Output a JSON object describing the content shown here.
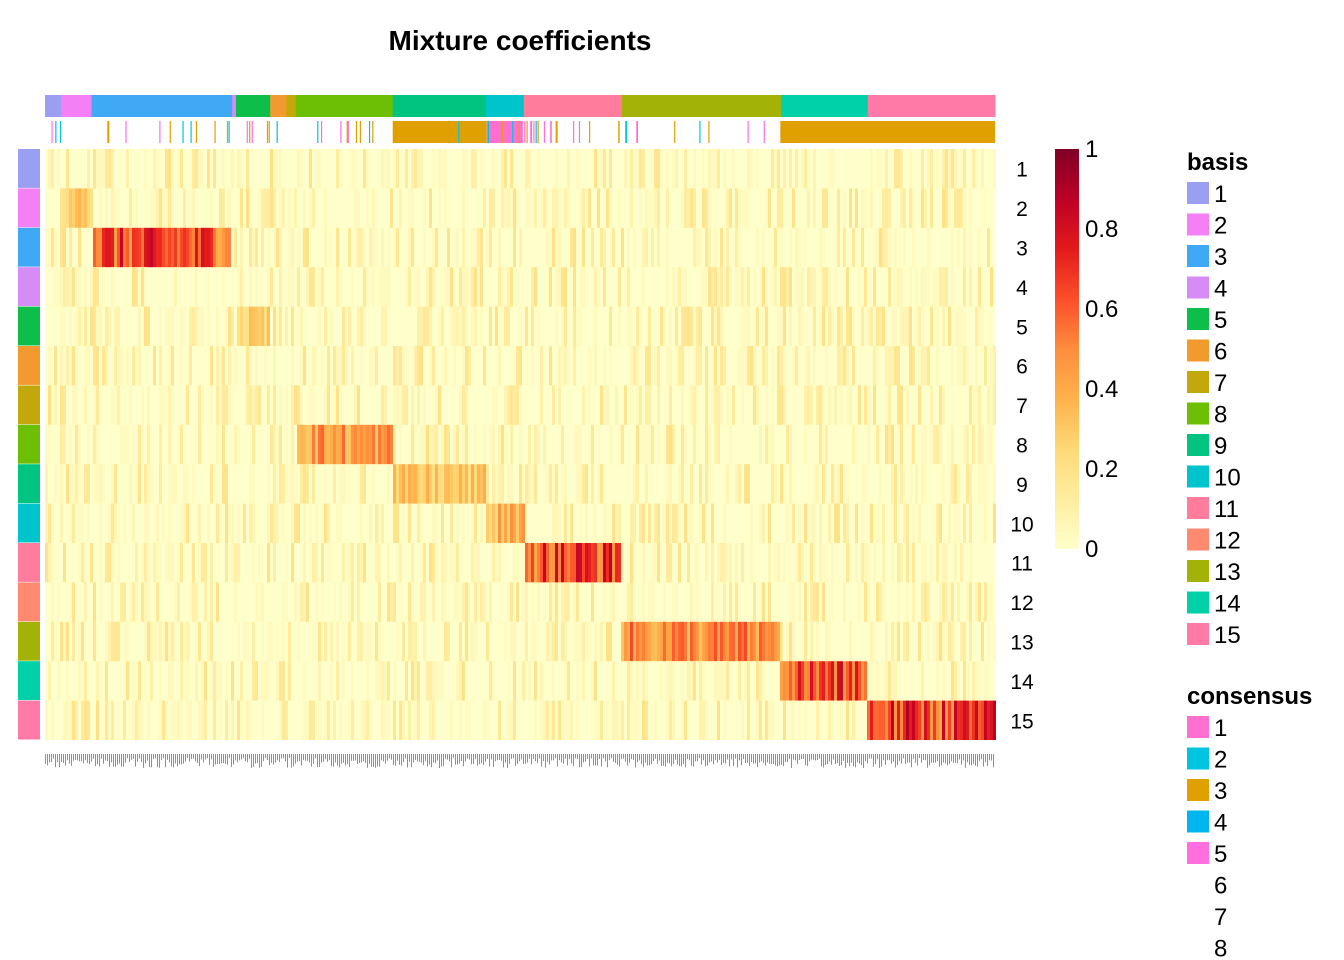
{
  "chart_data": {
    "type": "heatmap",
    "title": "Mixture coefficients",
    "row_labels": [
      "1",
      "2",
      "3",
      "4",
      "5",
      "6",
      "7",
      "8",
      "9",
      "10",
      "11",
      "12",
      "13",
      "14",
      "15"
    ],
    "row_colors": [
      "#9b9ff2",
      "#f57ff5",
      "#3fa9f5",
      "#d58cf5",
      "#0dbf4a",
      "#f39a2e",
      "#c2a80a",
      "#6cbf05",
      "#00c47f",
      "#00c4cc",
      "#ff7c9d",
      "#ff8a70",
      "#a3b207",
      "#00d1a8",
      "#ff7aa6"
    ],
    "column_groups": [
      {
        "basis": "1",
        "fraction": 0.017
      },
      {
        "basis": "2",
        "fraction": 0.032
      },
      {
        "basis": "3",
        "fraction": 0.148
      },
      {
        "basis": "4",
        "fraction": 0.004
      },
      {
        "basis": "5",
        "fraction": 0.036
      },
      {
        "basis": "6",
        "fraction": 0.017
      },
      {
        "basis": "7",
        "fraction": 0.01
      },
      {
        "basis": "8",
        "fraction": 0.102
      },
      {
        "basis": "9",
        "fraction": 0.098
      },
      {
        "basis": "10",
        "fraction": 0.04
      },
      {
        "basis": "11",
        "fraction": 0.102
      },
      {
        "basis": "12",
        "fraction": 0.001
      },
      {
        "basis": "13",
        "fraction": 0.168
      },
      {
        "basis": "14",
        "fraction": 0.091
      },
      {
        "basis": "15",
        "fraction": 0.134
      }
    ],
    "dominant_blocks": [
      {
        "row": "3",
        "column_group": "3",
        "peak": 0.85
      },
      {
        "row": "11",
        "column_group": "11",
        "peak": 0.9
      },
      {
        "row": "8",
        "column_group": "8",
        "peak": 0.6
      },
      {
        "row": "13",
        "column_group": "13",
        "peak": 0.65
      },
      {
        "row": "14",
        "column_group": "14",
        "peak": 0.85
      },
      {
        "row": "15",
        "column_group": "15",
        "peak": 0.9
      },
      {
        "row": "9",
        "column_group": "9",
        "peak": 0.4
      },
      {
        "row": "10",
        "column_group": "10",
        "peak": 0.5
      },
      {
        "row": "5",
        "column_group": "5",
        "peak": 0.35
      },
      {
        "row": "2",
        "column_group": "2",
        "peak": 0.4
      }
    ],
    "colorbar": {
      "min": 0,
      "max": 1,
      "ticks": [
        "1",
        "0.8",
        "0.6",
        "0.4",
        "0.2",
        "0"
      ],
      "colors": [
        "#ffffcc",
        "#ffeda0",
        "#fed976",
        "#feb24c",
        "#fd8d3c",
        "#fc4e2a",
        "#e31a1c",
        "#bd0026",
        "#800026"
      ]
    },
    "legend_basis": {
      "title": "basis",
      "items": [
        {
          "label": "1",
          "color": "#9b9ff2"
        },
        {
          "label": "2",
          "color": "#f57ff5"
        },
        {
          "label": "3",
          "color": "#3fa9f5"
        },
        {
          "label": "4",
          "color": "#d58cf5"
        },
        {
          "label": "5",
          "color": "#0dbf4a"
        },
        {
          "label": "6",
          "color": "#f39a2e"
        },
        {
          "label": "7",
          "color": "#c2a80a"
        },
        {
          "label": "8",
          "color": "#6cbf05"
        },
        {
          "label": "9",
          "color": "#00c47f"
        },
        {
          "label": "10",
          "color": "#00c4cc"
        },
        {
          "label": "11",
          "color": "#ff7c9d"
        },
        {
          "label": "12",
          "color": "#ff8a70"
        },
        {
          "label": "13",
          "color": "#a3b207"
        },
        {
          "label": "14",
          "color": "#00d1a8"
        },
        {
          "label": "15",
          "color": "#ff7aa6"
        }
      ]
    },
    "legend_consensus": {
      "title": "consensus",
      "items": [
        {
          "label": "1",
          "color": "#ff6fcf"
        },
        {
          "label": "2",
          "color": "#00c5e0"
        },
        {
          "label": "3",
          "color": "#e0a000"
        },
        {
          "label": "4",
          "color": "#00b6f0"
        },
        {
          "label": "5",
          "color": "#ff6fe0"
        },
        {
          "label": "6",
          "color": ""
        },
        {
          "label": "7",
          "color": ""
        },
        {
          "label": "8",
          "color": ""
        }
      ]
    },
    "consensus_track": {
      "solid_spans": [
        {
          "consensus": "3",
          "from": 0.366,
          "to": 0.465
        },
        {
          "consensus": "1",
          "from": 0.465,
          "to": 0.503
        },
        {
          "consensus": "3",
          "from": 0.774,
          "to": 1.0
        }
      ],
      "tick_colors": [
        "#e0a000",
        "#ff6fe0",
        "#00c5e0",
        "#e0a000"
      ]
    }
  }
}
